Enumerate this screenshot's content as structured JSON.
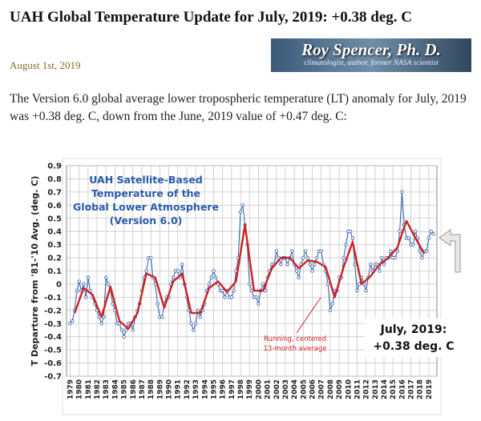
{
  "header": {
    "title": "UAH Global Temperature Update for July, 2019: +0.38 deg. C",
    "date": "August 1st, 2019"
  },
  "banner": {
    "name": "Roy Spencer, Ph. D.",
    "tagline": "climatologist, author, former NASA scientist"
  },
  "body": {
    "paragraph": "The Version 6.0 global average lower tropospheric temperature (LT) anomaly for July, 2019 was +0.38 deg. C, down from the June, 2019 value of +0.47 deg. C:"
  },
  "chart_data": {
    "type": "line",
    "title": [
      "UAH Satellite-Based",
      "Temperature of the",
      "Global Lower Atmosphere",
      "(Version 6.0)"
    ],
    "ylabel": "T Departure from '81-'10 Avg. (deg. C)",
    "annotations": [
      {
        "text": [
          "Running, centered",
          "13-month average"
        ],
        "color": "#d42020"
      },
      {
        "text": [
          "July, 2019:",
          "+0.38 deg. C"
        ],
        "color": "#111111"
      }
    ],
    "grid": true,
    "xlim": [
      1978.6,
      2019.9
    ],
    "ylim": [
      -0.7,
      0.9
    ],
    "yticks": [
      -0.7,
      -0.6,
      -0.5,
      -0.4,
      -0.3,
      -0.2,
      -0.1,
      0,
      0.1,
      0.2,
      0.3,
      0.4,
      0.5,
      0.6,
      0.7,
      0.8,
      0.9
    ],
    "xticks": [
      1979,
      1980,
      1981,
      1982,
      1983,
      1984,
      1985,
      1986,
      1987,
      1988,
      1989,
      1990,
      1991,
      1992,
      1993,
      1994,
      1995,
      1996,
      1997,
      1998,
      1999,
      2000,
      2001,
      2002,
      2003,
      2004,
      2005,
      2006,
      2007,
      2008,
      2009,
      2010,
      2011,
      2012,
      2013,
      2014,
      2015,
      2016,
      2017,
      2018,
      2019
    ],
    "series": [
      {
        "color": "#2a5caa",
        "marker": true,
        "x": [
          1979,
          1979.25,
          1979.5,
          1979.75,
          1980,
          1980.25,
          1980.5,
          1980.75,
          1981,
          1981.25,
          1981.5,
          1981.75,
          1982,
          1982.25,
          1982.5,
          1982.75,
          1983,
          1983.25,
          1983.5,
          1983.75,
          1984,
          1984.25,
          1984.5,
          1984.75,
          1985,
          1985.25,
          1985.5,
          1985.75,
          1986,
          1986.25,
          1986.5,
          1986.75,
          1987,
          1987.25,
          1987.5,
          1987.75,
          1988,
          1988.25,
          1988.5,
          1988.75,
          1989,
          1989.25,
          1989.5,
          1989.75,
          1990,
          1990.25,
          1990.5,
          1990.75,
          1991,
          1991.25,
          1991.5,
          1991.75,
          1992,
          1992.25,
          1992.5,
          1992.75,
          1993,
          1993.25,
          1993.5,
          1993.75,
          1994,
          1994.25,
          1994.5,
          1994.75,
          1995,
          1995.25,
          1995.5,
          1995.75,
          1996,
          1996.25,
          1996.5,
          1996.75,
          1997,
          1997.25,
          1997.5,
          1997.75,
          1998,
          1998.25,
          1998.5,
          1998.75,
          1999,
          1999.25,
          1999.5,
          1999.75,
          2000,
          2000.25,
          2000.5,
          2000.75,
          2001,
          2001.25,
          2001.5,
          2001.75,
          2002,
          2002.25,
          2002.5,
          2002.75,
          2003,
          2003.25,
          2003.5,
          2003.75,
          2004,
          2004.25,
          2004.5,
          2004.75,
          2005,
          2005.25,
          2005.5,
          2005.75,
          2006,
          2006.25,
          2006.5,
          2006.75,
          2007,
          2007.25,
          2007.5,
          2007.75,
          2008,
          2008.25,
          2008.5,
          2008.75,
          2009,
          2009.25,
          2009.5,
          2009.75,
          2010,
          2010.25,
          2010.5,
          2010.75,
          2011,
          2011.25,
          2011.5,
          2011.75,
          2012,
          2012.25,
          2012.5,
          2012.75,
          2013,
          2013.25,
          2013.5,
          2013.75,
          2014,
          2014.25,
          2014.5,
          2014.75,
          2015,
          2015.25,
          2015.5,
          2015.75,
          2016,
          2016.25,
          2016.5,
          2016.75,
          2017,
          2017.25,
          2017.5,
          2017.75,
          2018,
          2018.25,
          2018.5,
          2018.75,
          2019,
          2019.25,
          2019.5
        ],
        "values": [
          -0.3,
          -0.28,
          -0.2,
          -0.05,
          0.02,
          -0.05,
          0.0,
          -0.1,
          0.05,
          -0.05,
          -0.1,
          -0.15,
          -0.2,
          -0.25,
          -0.3,
          -0.25,
          0.05,
          0.0,
          -0.05,
          -0.15,
          -0.2,
          -0.3,
          -0.3,
          -0.35,
          -0.4,
          -0.35,
          -0.3,
          -0.3,
          -0.35,
          -0.25,
          -0.2,
          -0.15,
          -0.05,
          0.05,
          0.1,
          0.2,
          0.2,
          0.05,
          0.0,
          -0.15,
          -0.25,
          -0.25,
          -0.15,
          -0.1,
          -0.1,
          0.0,
          0.05,
          0.1,
          0.1,
          0.05,
          0.15,
          0.0,
          -0.1,
          -0.2,
          -0.3,
          -0.35,
          -0.3,
          -0.2,
          -0.25,
          -0.2,
          -0.15,
          -0.05,
          0.0,
          0.05,
          0.1,
          0.05,
          0.0,
          -0.05,
          -0.05,
          -0.1,
          -0.05,
          -0.1,
          -0.1,
          -0.05,
          0.1,
          0.2,
          0.55,
          0.6,
          0.45,
          0.3,
          0.0,
          -0.05,
          -0.1,
          -0.1,
          -0.15,
          -0.05,
          0.0,
          -0.05,
          0.05,
          0.1,
          0.15,
          0.15,
          0.25,
          0.2,
          0.15,
          0.2,
          0.2,
          0.15,
          0.2,
          0.25,
          0.15,
          0.1,
          0.05,
          0.15,
          0.2,
          0.25,
          0.2,
          0.15,
          0.1,
          0.15,
          0.2,
          0.25,
          0.25,
          0.15,
          0.1,
          0.0,
          -0.2,
          -0.15,
          -0.05,
          -0.05,
          0.05,
          0.05,
          0.2,
          0.3,
          0.4,
          0.4,
          0.35,
          0.15,
          -0.05,
          0.0,
          0.05,
          0.0,
          -0.05,
          0.05,
          0.15,
          0.1,
          0.15,
          0.15,
          0.1,
          0.2,
          0.15,
          0.2,
          0.2,
          0.25,
          0.2,
          0.2,
          0.25,
          0.4,
          0.7,
          0.45,
          0.35,
          0.35,
          0.3,
          0.3,
          0.4,
          0.35,
          0.25,
          0.2,
          0.25,
          0.25,
          0.35,
          0.4,
          0.38
        ]
      },
      {
        "color": "#cc2222",
        "marker": false,
        "x": [
          1979.5,
          1980.5,
          1981.5,
          1982.5,
          1983.5,
          1984.5,
          1985.5,
          1986.5,
          1987.5,
          1988.5,
          1989.5,
          1990.5,
          1991.5,
          1992.5,
          1993.5,
          1994.5,
          1995.5,
          1996.5,
          1997.5,
          1998.5,
          1999.5,
          2000.5,
          2001.5,
          2002.5,
          2003.5,
          2004.5,
          2005.5,
          2006.5,
          2007.5,
          2008.5,
          2009.5,
          2010.5,
          2011.5,
          2012.5,
          2013.5,
          2014.5,
          2015.5,
          2016.5,
          2017.5,
          2018.5
        ],
        "values": [
          -0.22,
          -0.03,
          -0.08,
          -0.25,
          -0.02,
          -0.28,
          -0.34,
          -0.22,
          0.08,
          0.05,
          -0.18,
          0.02,
          0.08,
          -0.22,
          -0.22,
          -0.03,
          0.02,
          -0.06,
          0.02,
          0.45,
          -0.05,
          -0.05,
          0.12,
          0.2,
          0.2,
          0.12,
          0.18,
          0.17,
          0.13,
          -0.1,
          0.13,
          0.32,
          0.0,
          0.06,
          0.15,
          0.2,
          0.28,
          0.48,
          0.35,
          0.23
        ]
      }
    ]
  }
}
